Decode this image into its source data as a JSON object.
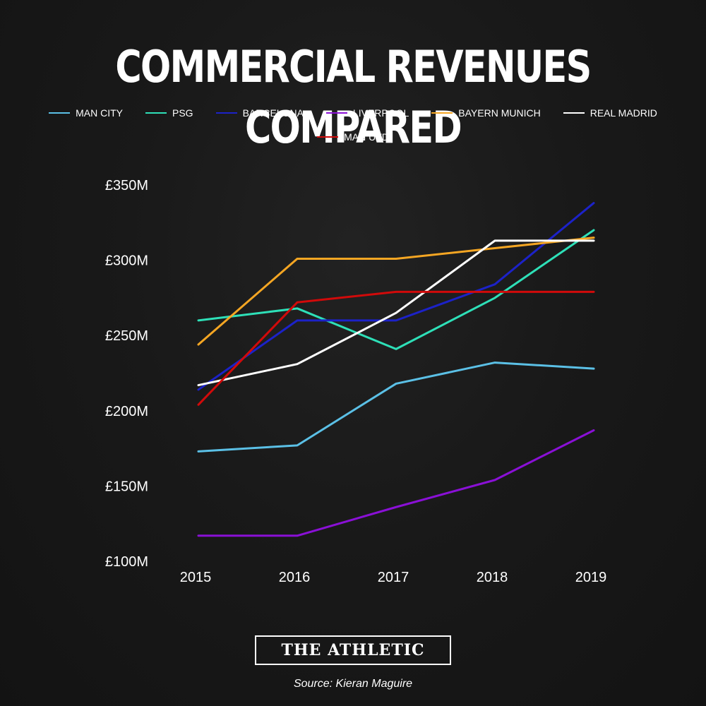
{
  "title": "COMMERCIAL REVENUES COMPARED",
  "logo": "THE ATHLETIC",
  "source": "Source: Kieran Maguire",
  "chart_data": {
    "type": "line",
    "title": "COMMERCIAL REVENUES COMPARED",
    "xlabel": "",
    "ylabel": "",
    "x": [
      "2015",
      "2016",
      "2017",
      "2018",
      "2019"
    ],
    "y_ticks": [
      "£100M",
      "£150M",
      "£200M",
      "£250M",
      "£300M",
      "£350M"
    ],
    "ylim": [
      100,
      350
    ],
    "grid": false,
    "legend": "top",
    "series": [
      {
        "name": "MAN CITY",
        "color": "#5bc0e6",
        "values": [
          173,
          177,
          218,
          232,
          228
        ]
      },
      {
        "name": "PSG",
        "color": "#2ee0b8",
        "values": [
          260,
          268,
          241,
          275,
          320
        ]
      },
      {
        "name": "BARCELONA",
        "color": "#1c22c8",
        "values": [
          214,
          260,
          260,
          284,
          338
        ]
      },
      {
        "name": "LIVERPOOL",
        "color": "#8a10d6",
        "values": [
          117,
          117,
          136,
          154,
          187
        ]
      },
      {
        "name": "BAYERN MUNICH",
        "color": "#f5a623",
        "values": [
          244,
          301,
          301,
          308,
          315
        ]
      },
      {
        "name": "REAL MADRID",
        "color": "#ffffff",
        "values": [
          217,
          231,
          265,
          313,
          313
        ]
      },
      {
        "name": "MAN UTD",
        "color": "#d10a0a",
        "values": [
          204,
          272,
          279,
          279,
          279
        ]
      }
    ]
  }
}
